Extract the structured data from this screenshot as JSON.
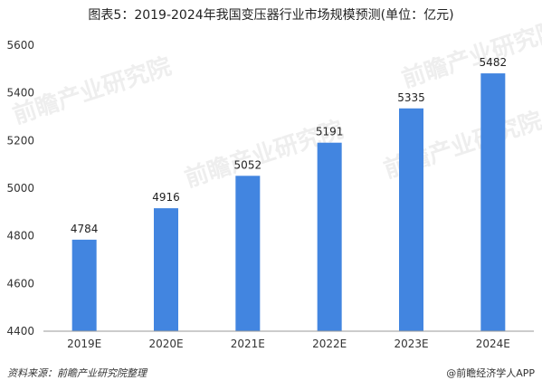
{
  "chart_data": {
    "type": "bar",
    "title": "图表5：2019-2024年我国变压器行业市场规模预测(单位：亿元)",
    "categories": [
      "2019E",
      "2020E",
      "2021E",
      "2022E",
      "2023E",
      "2024E"
    ],
    "values": [
      4784,
      4916,
      5052,
      5191,
      5335,
      5482
    ],
    "ylim": [
      4400,
      5600
    ],
    "yticks": [
      4400,
      4600,
      4800,
      5000,
      5200,
      5400,
      5600
    ],
    "xlabel": "",
    "ylabel": "",
    "grid": false,
    "bar_color": "#4285e0"
  },
  "footer": {
    "source": "资料来源：前瞻产业研究院整理",
    "credit": "@前瞻经济学人APP"
  },
  "watermark": "前瞻产业研究院"
}
